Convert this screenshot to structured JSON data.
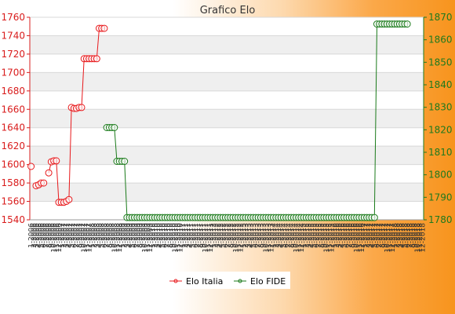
{
  "chart_data": {
    "type": "line",
    "title": "Grafico Elo",
    "grid": true,
    "legend_position": "bottom-center",
    "y_left": {
      "min": 1540,
      "max": 1760,
      "step": 20
    },
    "y_right": {
      "min": 1780,
      "max": 1870,
      "step": 10
    },
    "x_tick_labels": [
      "1-2006",
      "2-2006",
      "3-2006",
      "4-2006",
      "5-2006",
      "6-2006",
      "7-2006",
      "8-2006",
      "9-2006",
      "10-2006",
      "11-2006",
      "12-2006",
      "1-2007",
      "2-2007",
      "3-2007",
      "4-2007",
      "5-2007",
      "6-2007",
      "7-2007",
      "8-2007",
      "9-2007",
      "10-2007",
      "11-2007",
      "12-2007",
      "1-2008",
      "2-2008",
      "3-2008",
      "4-2008",
      "5-2008",
      "6-2008",
      "7-2008",
      "8-2008",
      "9-2008",
      "10-2008",
      "11-2008",
      "12-2008",
      "1-2009",
      "2-2009",
      "3-2009",
      "4-2009",
      "5-2009",
      "6-2009",
      "7-2009",
      "8-2009",
      "9-2009",
      "10-2009",
      "11-2009",
      "12-2009",
      "1-2010",
      "2-2010",
      "3-2010",
      "4-2010",
      "5-2010",
      "6-2010",
      "7-2010",
      "8-2010",
      "9-2010",
      "10-2010",
      "11-2010",
      "12-2010",
      "1-2011",
      "2-2011",
      "3-2011",
      "4-2011",
      "5-2011",
      "6-2011",
      "7-2011",
      "8-2011",
      "9-2011",
      "10-2011",
      "11-2011",
      "12-2011",
      "1-2012",
      "2-2012",
      "3-2012",
      "4-2012",
      "5-2012",
      "6-2012",
      "7-2012",
      "8-2012",
      "9-2012",
      "10-2012",
      "11-2012",
      "12-2012",
      "1-2013",
      "2-2013",
      "3-2013",
      "4-2013",
      "5-2013",
      "6-2013",
      "7-2013",
      "8-2013",
      "9-2013",
      "10-2013",
      "11-2013",
      "12-2013",
      "1-2014",
      "2-2014",
      "3-2014",
      "4-2014",
      "5-2014",
      "6-2014",
      "7-2014",
      "8-2014",
      "9-2014",
      "10-2014",
      "11-2014",
      "12-2014",
      "1-2015",
      "2-2015",
      "3-2015",
      "4-2015",
      "5-2015",
      "6-2015",
      "7-2015",
      "8-2015",
      "9-2015",
      "10-2015",
      "11-2015",
      "12-2015",
      "1-2016",
      "2-2016",
      "3-2016",
      "4-2016",
      "5-2016",
      "6-2016",
      "7-2016",
      "8-2016",
      "9-2016",
      "10-2016",
      "11-2016",
      "12-2016",
      "1-2017",
      "2-2017",
      "3-2017",
      "4-2017",
      "5-2017",
      "6-2017",
      "7-2017",
      "8-2017",
      "9-2017",
      "10-2017",
      "11-2017",
      "12-2017",
      "1-2018",
      "2-2018",
      "3-2018",
      "4-2018",
      "5-2018",
      "6-2018",
      "7-2018",
      "8-2018",
      "9-2018",
      "10-2018",
      "11-2018",
      "12-2018"
    ],
    "series": [
      {
        "name": "Elo Italia",
        "axis": "left",
        "color": "#e8191c",
        "values": [
          1598,
          null,
          1577,
          1578,
          1580,
          1580,
          null,
          1591,
          1603,
          1604,
          1604,
          1559,
          1559,
          1559,
          1560,
          1562,
          1662,
          1661,
          1661,
          1662,
          1662,
          1715,
          1715,
          1715,
          1715,
          1715,
          1715,
          1748,
          1748,
          1748
        ]
      },
      {
        "name": "Elo FIDE",
        "axis": "right",
        "color": "#1a7a1a",
        "values": [
          null,
          null,
          null,
          null,
          null,
          null,
          null,
          null,
          null,
          null,
          null,
          null,
          null,
          null,
          null,
          null,
          null,
          null,
          null,
          null,
          null,
          null,
          null,
          null,
          null,
          null,
          null,
          null,
          null,
          null,
          1821,
          1821,
          1821,
          1821,
          1806,
          1806,
          1806,
          1806,
          1781,
          1781,
          1781,
          1781,
          1781,
          1781,
          1781,
          1781,
          1781,
          1781,
          1781,
          1781,
          1781,
          1781,
          1781,
          1781,
          1781,
          1781,
          1781,
          1781,
          1781,
          1781,
          1781,
          1781,
          1781,
          1781,
          1781,
          1781,
          1781,
          1781,
          1781,
          1781,
          1781,
          1781,
          1781,
          1781,
          1781,
          1781,
          1781,
          1781,
          1781,
          1781,
          1781,
          1781,
          1781,
          1781,
          1781,
          1781,
          1781,
          1781,
          1781,
          1781,
          1781,
          1781,
          1781,
          1781,
          1781,
          1781,
          1781,
          1781,
          1781,
          1781,
          1781,
          1781,
          1781,
          1781,
          1781,
          1781,
          1781,
          1781,
          1781,
          1781,
          1781,
          1781,
          1781,
          1781,
          1781,
          1781,
          1781,
          1781,
          1781,
          1781,
          1781,
          1781,
          1781,
          1781,
          1781,
          1781,
          1781,
          1781,
          1781,
          1781,
          1781,
          1781,
          1781,
          1781,
          1781,
          1781,
          1781,
          1867,
          1867,
          1867,
          1867,
          1867,
          1867,
          1867,
          1867,
          1867,
          1867,
          1867,
          1867,
          1867
        ]
      }
    ]
  }
}
